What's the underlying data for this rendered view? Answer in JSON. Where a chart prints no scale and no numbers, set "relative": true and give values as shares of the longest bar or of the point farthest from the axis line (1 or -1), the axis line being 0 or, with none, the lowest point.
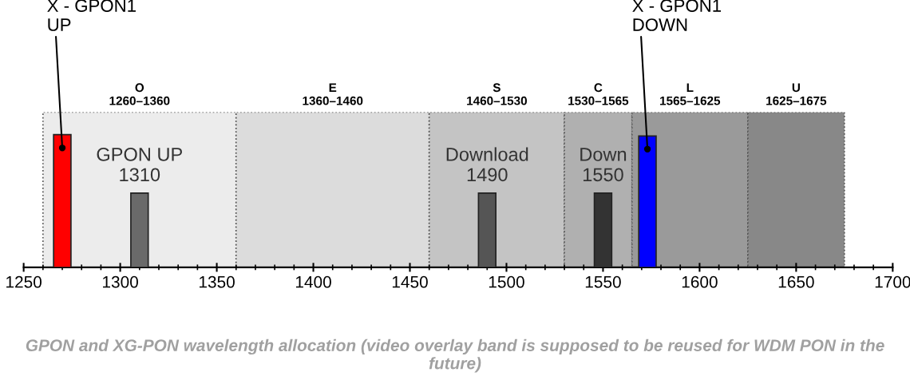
{
  "chart_data": {
    "type": "bar",
    "relative": true,
    "x": [
      1270,
      1310,
      1490,
      1550,
      1573
    ],
    "values": [
      1,
      0.56,
      0.56,
      0.56,
      0.99
    ],
    "colors": [
      "#ff0000",
      "#6a6a6a",
      "#555555",
      "#333333",
      "#0000ff"
    ],
    "xlim": [
      1250,
      1700
    ],
    "xticks": [
      1250,
      1300,
      1350,
      1400,
      1450,
      1500,
      1550,
      1600,
      1650,
      1700
    ],
    "bands": [
      {
        "axis": "x",
        "from": 1260,
        "to": 1360,
        "label": "O\n1260–1360",
        "color": "#ececec"
      },
      {
        "axis": "x",
        "from": 1360,
        "to": 1460,
        "label": "E\n1360–1460",
        "color": "#dcdcdc"
      },
      {
        "axis": "x",
        "from": 1460,
        "to": 1530,
        "label": "S\n1460–1530",
        "color": "#c4c4c4"
      },
      {
        "axis": "x",
        "from": 1530,
        "to": 1565,
        "label": "C\n1530–1565",
        "color": "#b0b0b0"
      },
      {
        "axis": "x",
        "from": 1565,
        "to": 1625,
        "label": "L\n1565–1625",
        "color": "#9a9a9a"
      },
      {
        "axis": "x",
        "from": 1625,
        "to": 1675,
        "label": "U\n1625–1675",
        "color": "#888888"
      }
    ],
    "annotations": [
      {
        "text": "GPON UP\n1310",
        "x": 1310,
        "y": 0.56
      },
      {
        "text": "Download\n1490",
        "x": 1490,
        "y": 0.56
      },
      {
        "text": "Down\n1550",
        "x": 1550,
        "y": 0.56
      },
      "X - GPON1\nUP",
      "X - GPON1\nDOWN",
      "GPON and XG-PON wavelength allocation (video overlay band is supposed to be reused for WDM PON in the future)"
    ],
    "grid": false
  }
}
